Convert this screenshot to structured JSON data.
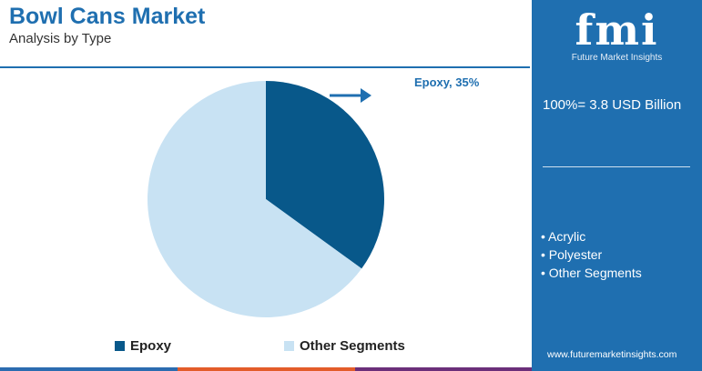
{
  "header": {
    "title": "Bowl Cans Market",
    "subtitle": "Analysis by Type"
  },
  "chart_data": {
    "type": "pie",
    "categories": [
      "Epoxy",
      "Other Segments"
    ],
    "values": [
      35,
      65
    ],
    "colors": [
      "#08588a",
      "#c8e2f3"
    ],
    "annotation": "Epoxy, 35%",
    "legend_placement": "bottom"
  },
  "sidebar": {
    "logo_text": "fmi",
    "logo_subtitle": "Future Market Insights",
    "total": "100%= 3.8 USD Billion",
    "segments": [
      "Acrylic",
      "Polyester",
      "Other Segments"
    ],
    "website": "www.futuremarketinsights.com",
    "background_color": "#1f6fb0"
  },
  "colors": {
    "accent": "#1f6fb0",
    "stripe": [
      "#2b6cb0",
      "#e35c2a",
      "#6b2f7a",
      "#2b6cb0"
    ]
  }
}
